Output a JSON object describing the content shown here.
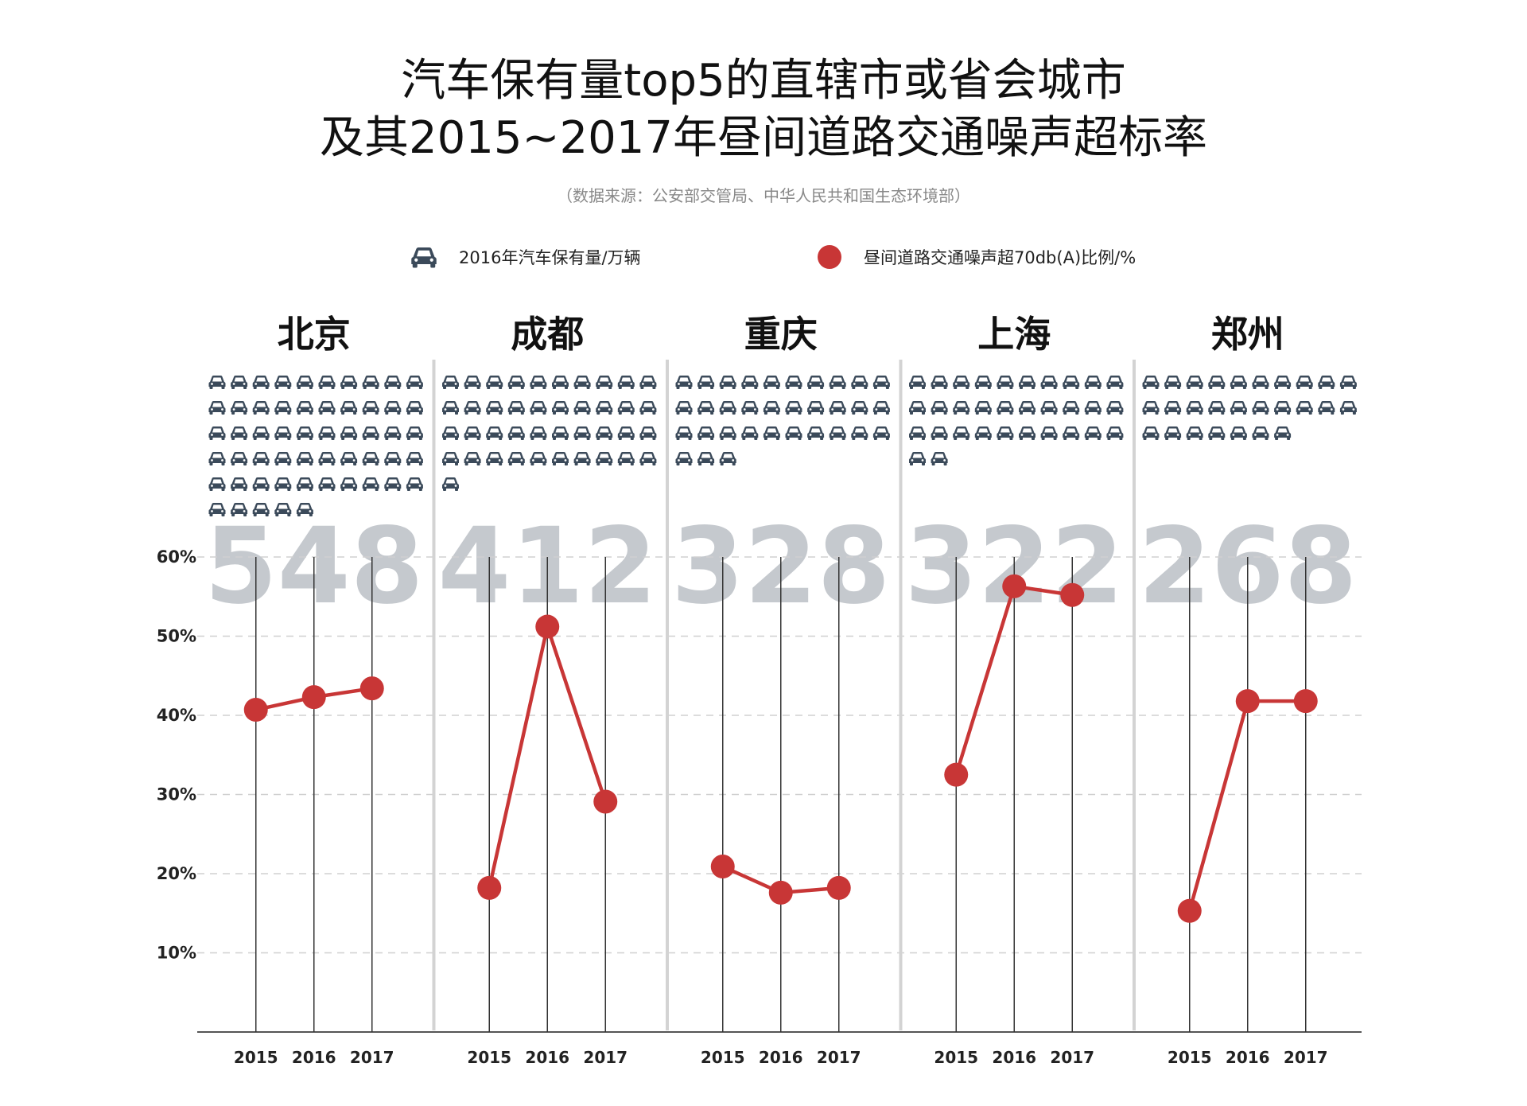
{
  "title_line1": "汽车保有量top5的直辖市或省会城市",
  "title_line2": "及其2015~2017年昼间道路交通噪声超标率",
  "source": "（数据来源：公安部交管局、中华人民共和国生态环境部）",
  "legend": {
    "cars_label": "2016年汽车保有量/万辆",
    "cars_icon": "car-icon",
    "noise_label": "昼间道路交通噪声超70db(A)比例/%"
  },
  "colors": {
    "car": "#3b4a5a",
    "point": "#c83636",
    "line": "#c83636",
    "big_number": "#c5c9ce",
    "divider": "#d3d3d3",
    "grid": "#d0d0d0",
    "axis": "#555555"
  },
  "chart_data": {
    "type": "line",
    "ylim": [
      0,
      60
    ],
    "y_ticks": [
      10,
      20,
      30,
      40,
      50,
      60
    ],
    "y_tick_labels": [
      "10%",
      "20%",
      "30%",
      "40%",
      "50%",
      "60%"
    ],
    "x": [
      "2015",
      "2016",
      "2017"
    ],
    "grid": "horizontal-dashed",
    "legend_position": "top",
    "series": [
      {
        "name": "北京",
        "car_count": "548",
        "car_value": 548,
        "values": [
          40.7,
          42.3,
          43.4
        ]
      },
      {
        "name": "成都",
        "car_count": "412",
        "car_value": 412,
        "values": [
          18.2,
          51.2,
          29.1
        ]
      },
      {
        "name": "重庆",
        "car_count": "328",
        "car_value": 328,
        "values": [
          20.9,
          17.6,
          18.2
        ]
      },
      {
        "name": "上海",
        "car_count": "322",
        "car_value": 322,
        "values": [
          32.5,
          56.3,
          55.2
        ]
      },
      {
        "name": "郑州",
        "car_count": "268",
        "car_value": 268,
        "values": [
          15.3,
          41.8,
          41.8
        ]
      }
    ]
  }
}
